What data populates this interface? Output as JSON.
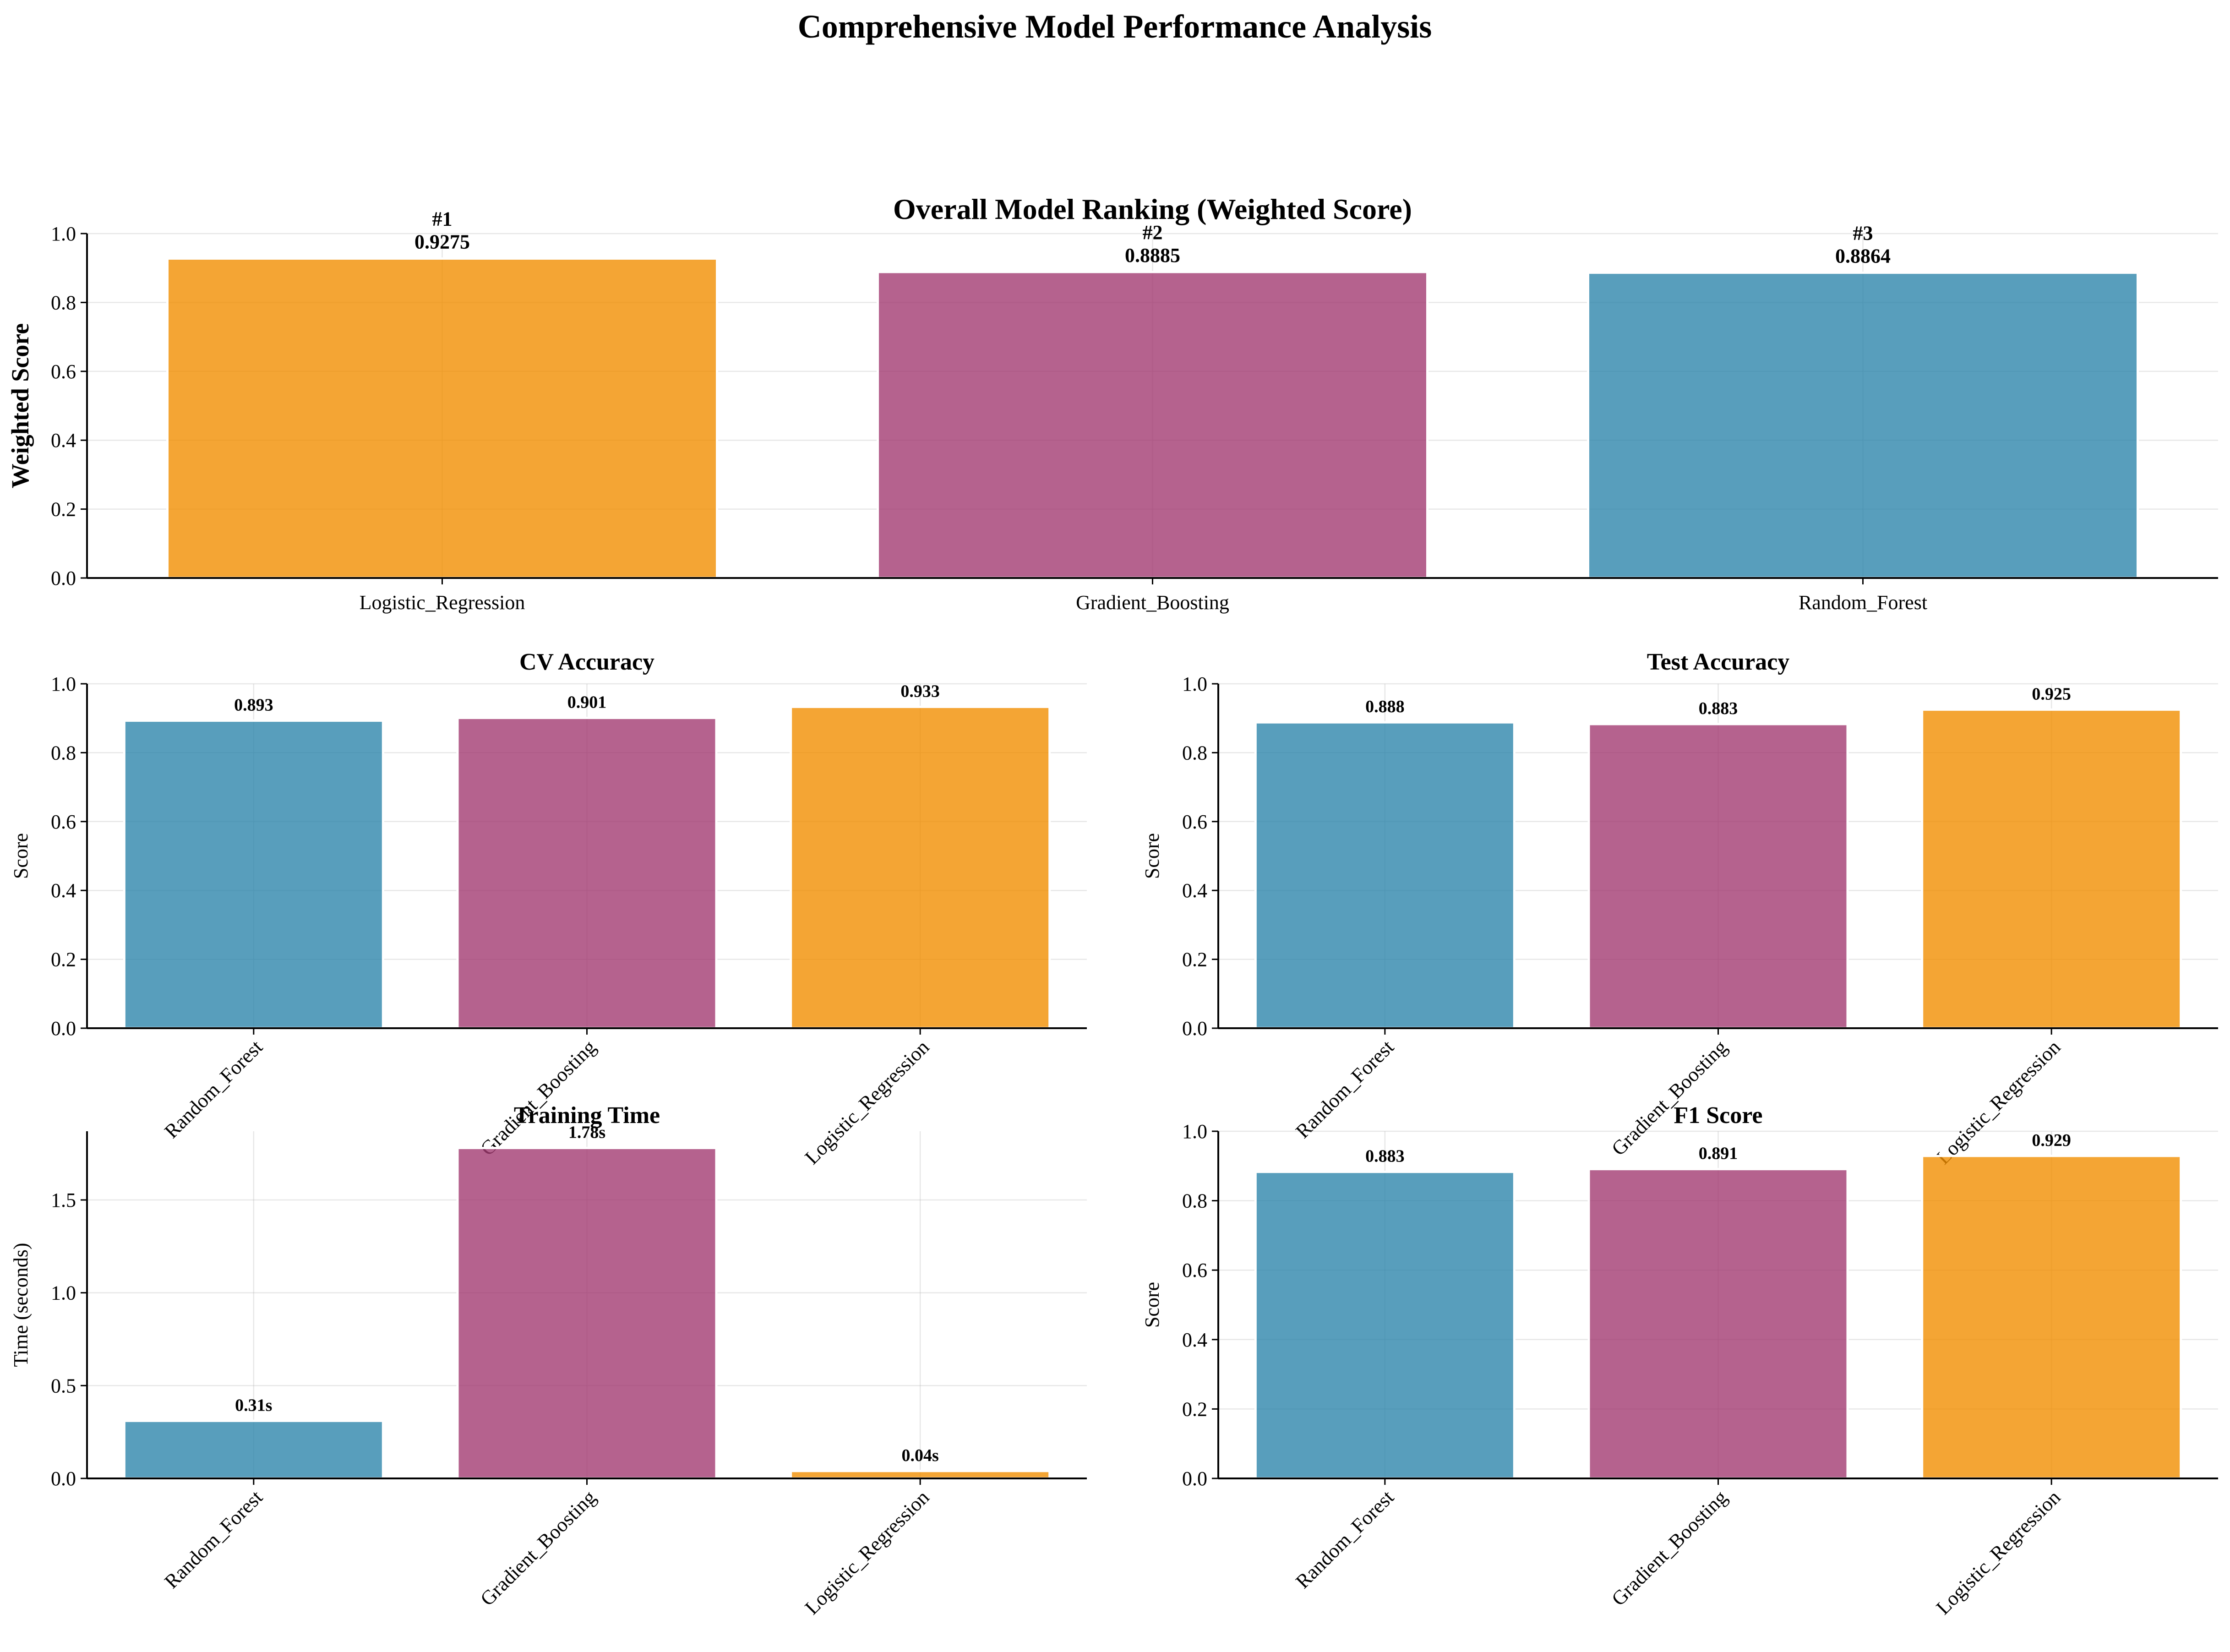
{
  "figure": {
    "title": "Comprehensive Model Performance Analysis"
  },
  "colors": {
    "Random_Forest": "#2E86AB",
    "Gradient_Boosting": "#A23B72",
    "Logistic_Regression": "#F18F01"
  },
  "chart_data": [
    {
      "id": "ranking",
      "type": "bar",
      "title": "Overall Model Ranking (Weighted Score)",
      "xlabel": "",
      "ylabel": "Weighted Score",
      "categories": [
        "Logistic_Regression",
        "Gradient_Boosting",
        "Random_Forest"
      ],
      "values": [
        0.9275,
        0.8885,
        0.8864
      ],
      "labels": [
        "#1\n0.9275",
        "#2\n0.8885",
        "#3\n0.8864"
      ],
      "ylim": [
        0,
        1.0
      ],
      "yticks": [
        "0.0",
        "0.2",
        "0.4",
        "0.6",
        "0.8",
        "1.0"
      ],
      "grid": true,
      "legend": "none"
    },
    {
      "id": "cv",
      "type": "bar",
      "title": "CV Accuracy",
      "xlabel": "",
      "ylabel": "Score",
      "categories": [
        "Random_Forest",
        "Gradient_Boosting",
        "Logistic_Regression"
      ],
      "values": [
        0.893,
        0.901,
        0.933
      ],
      "labels": [
        "0.893",
        "0.901",
        "0.933"
      ],
      "ylim": [
        0,
        1.0
      ],
      "yticks": [
        "0.0",
        "0.2",
        "0.4",
        "0.6",
        "0.8",
        "1.0"
      ],
      "grid": true,
      "legend": "none"
    },
    {
      "id": "test",
      "type": "bar",
      "title": "Test Accuracy",
      "xlabel": "",
      "ylabel": "Score",
      "categories": [
        "Random_Forest",
        "Gradient_Boosting",
        "Logistic_Regression"
      ],
      "values": [
        0.888,
        0.883,
        0.925
      ],
      "labels": [
        "0.888",
        "0.883",
        "0.925"
      ],
      "ylim": [
        0,
        1.0
      ],
      "yticks": [
        "0.0",
        "0.2",
        "0.4",
        "0.6",
        "0.8",
        "1.0"
      ],
      "grid": true,
      "legend": "none"
    },
    {
      "id": "time",
      "type": "bar",
      "title": "Training Time",
      "xlabel": "",
      "ylabel": "Time (seconds)",
      "categories": [
        "Random_Forest",
        "Gradient_Boosting",
        "Logistic_Regression"
      ],
      "values": [
        0.31,
        1.78,
        0.04
      ],
      "labels": [
        "0.31s",
        "1.78s",
        "0.04s"
      ],
      "ylim": [
        0,
        1.87
      ],
      "yticks": [
        "0.0",
        "0.5",
        "1.0",
        "1.5"
      ],
      "grid": true,
      "legend": "none"
    },
    {
      "id": "f1",
      "type": "bar",
      "title": "F1 Score",
      "xlabel": "",
      "ylabel": "Score",
      "categories": [
        "Random_Forest",
        "Gradient_Boosting",
        "Logistic_Regression"
      ],
      "values": [
        0.883,
        0.891,
        0.929
      ],
      "labels": [
        "0.883",
        "0.891",
        "0.929"
      ],
      "ylim": [
        0,
        1.0
      ],
      "yticks": [
        "0.0",
        "0.2",
        "0.4",
        "0.6",
        "0.8",
        "1.0"
      ],
      "grid": true,
      "legend": "none"
    }
  ]
}
